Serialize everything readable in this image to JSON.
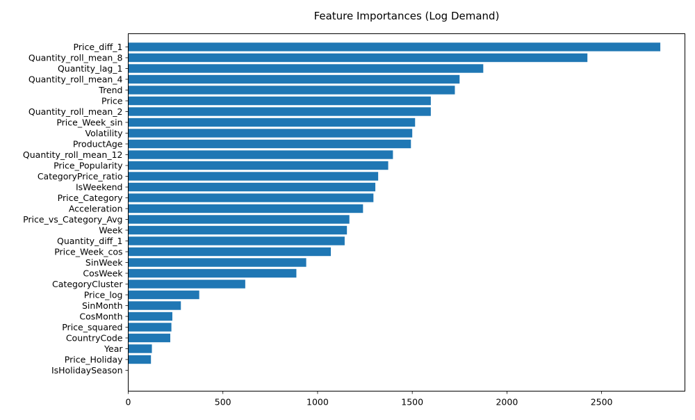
{
  "chart_data": {
    "type": "bar",
    "orientation": "horizontal",
    "title": "Feature Importances (Log Demand)",
    "xlabel": "",
    "ylabel": "",
    "bar_color": "#1f77b4",
    "xlim": [
      0,
      2940
    ],
    "xticks": [
      0,
      500,
      1000,
      1500,
      2000,
      2500
    ],
    "grid": false,
    "categories": [
      "Price_diff_1",
      "Quantity_roll_mean_8",
      "Quantity_lag_1",
      "Quantity_roll_mean_4",
      "Trend",
      "Price",
      "Quantity_roll_mean_2",
      "Price_Week_sin",
      "Volatility",
      "ProductAge",
      "Quantity_roll_mean_12",
      "Price_Popularity",
      "CategoryPrice_ratio",
      "IsWeekend",
      "Price_Category",
      "Acceleration",
      "Price_vs_Category_Avg",
      "Week",
      "Quantity_diff_1",
      "Price_Week_cos",
      "SinWeek",
      "CosWeek",
      "CategoryCluster",
      "Price_log",
      "SinMonth",
      "CosMonth",
      "Price_squared",
      "CountryCode",
      "Year",
      "Price_Holiday",
      "IsHolidaySeason"
    ],
    "values": [
      2810,
      2425,
      1875,
      1750,
      1725,
      1598,
      1598,
      1515,
      1500,
      1493,
      1398,
      1373,
      1320,
      1305,
      1295,
      1240,
      1168,
      1155,
      1143,
      1070,
      940,
      888,
      618,
      375,
      278,
      233,
      228,
      222,
      125,
      120,
      0
    ]
  }
}
